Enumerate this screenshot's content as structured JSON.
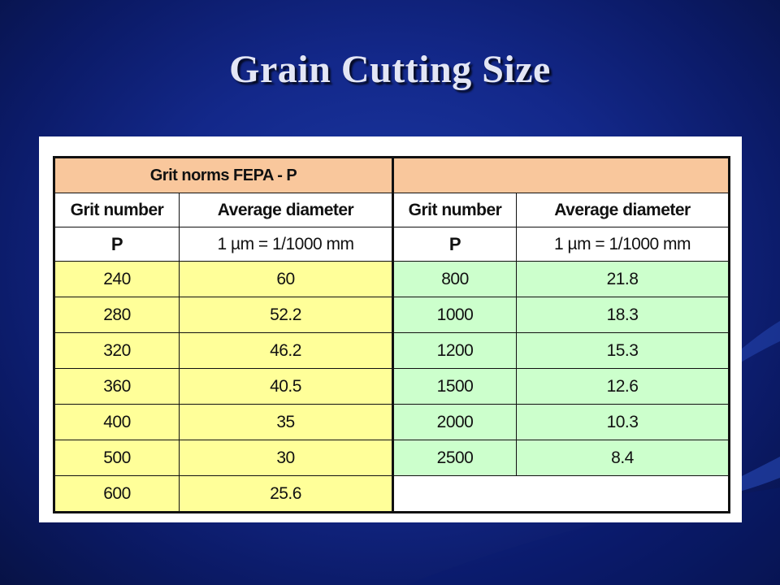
{
  "slide": {
    "title": "Grain Cutting Size"
  },
  "table": {
    "group_title": "Grit norms FEPA - P",
    "columns": {
      "grit_number": "Grit number",
      "average_diameter": "Average diameter"
    },
    "units": {
      "grit": "P",
      "diameter": "1 µm = 1/1000 mm"
    },
    "left_rows": [
      {
        "grit": "240",
        "diameter": "60"
      },
      {
        "grit": "280",
        "diameter": "52.2"
      },
      {
        "grit": "320",
        "diameter": "46.2"
      },
      {
        "grit": "360",
        "diameter": "40.5"
      },
      {
        "grit": "400",
        "diameter": "35"
      },
      {
        "grit": "500",
        "diameter": "30"
      },
      {
        "grit": "600",
        "diameter": "25.6"
      }
    ],
    "right_rows": [
      {
        "grit": "800",
        "diameter": "21.8"
      },
      {
        "grit": "1000",
        "diameter": "18.3"
      },
      {
        "grit": "1200",
        "diameter": "15.3"
      },
      {
        "grit": "1500",
        "diameter": "12.6"
      },
      {
        "grit": "2000",
        "diameter": "10.3"
      },
      {
        "grit": "2500",
        "diameter": "8.4"
      }
    ]
  },
  "colors": {
    "background": "#13288a",
    "header_fill": "#f9c79c",
    "left_fill": "#ffff99",
    "right_fill": "#ccffcc"
  }
}
